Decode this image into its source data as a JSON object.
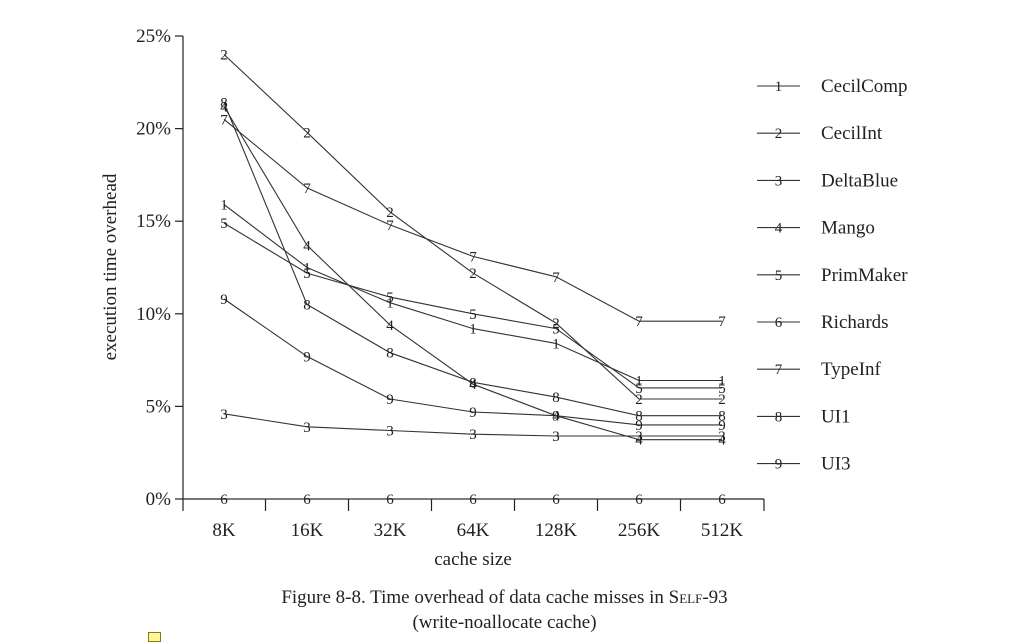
{
  "chart_data": {
    "type": "line",
    "title": "",
    "xlabel": "cache size",
    "ylabel": "execution time overhead",
    "categories": [
      "8K",
      "16K",
      "32K",
      "64K",
      "128K",
      "256K",
      "512K"
    ],
    "yticks": [
      "0%",
      "5%",
      "10%",
      "15%",
      "20%",
      "25%"
    ],
    "ylim": [
      0,
      25
    ],
    "grid": false,
    "legend": "right",
    "series": [
      {
        "name": "CecilComp",
        "marker": "1",
        "values": [
          15.9,
          12.5,
          10.6,
          9.2,
          8.4,
          6.4,
          6.4
        ]
      },
      {
        "name": "CecilInt",
        "marker": "2",
        "values": [
          24.0,
          19.8,
          15.5,
          12.2,
          9.5,
          5.4,
          5.4
        ]
      },
      {
        "name": "DeltaBlue",
        "marker": "3",
        "values": [
          4.6,
          3.9,
          3.7,
          3.5,
          3.4,
          3.4,
          3.4
        ]
      },
      {
        "name": "Mango",
        "marker": "4",
        "values": [
          21.2,
          13.7,
          9.4,
          6.2,
          4.5,
          3.2,
          3.2
        ]
      },
      {
        "name": "PrimMaker",
        "marker": "5",
        "values": [
          14.9,
          12.2,
          10.9,
          10.0,
          9.2,
          6.0,
          6.0
        ]
      },
      {
        "name": "Richards",
        "marker": "6",
        "values": [
          0.0,
          0.0,
          0.0,
          0.0,
          0.0,
          0.0,
          0.0
        ]
      },
      {
        "name": "TypeInf",
        "marker": "7",
        "values": [
          20.5,
          16.8,
          14.8,
          13.1,
          12.0,
          9.6,
          9.6
        ]
      },
      {
        "name": "UI1",
        "marker": "8",
        "values": [
          21.4,
          10.5,
          7.9,
          6.3,
          5.5,
          4.5,
          4.5
        ]
      },
      {
        "name": "UI3",
        "marker": "9",
        "values": [
          10.8,
          7.7,
          5.4,
          4.7,
          4.5,
          4.0,
          4.0
        ]
      }
    ]
  },
  "caption": {
    "line1_prefix": "Figure 8-8.  Time overhead of data cache misses in ",
    "line1_smallcaps": "Self",
    "line1_suffix": "-93",
    "line2": "(write-noallocate cache)"
  }
}
